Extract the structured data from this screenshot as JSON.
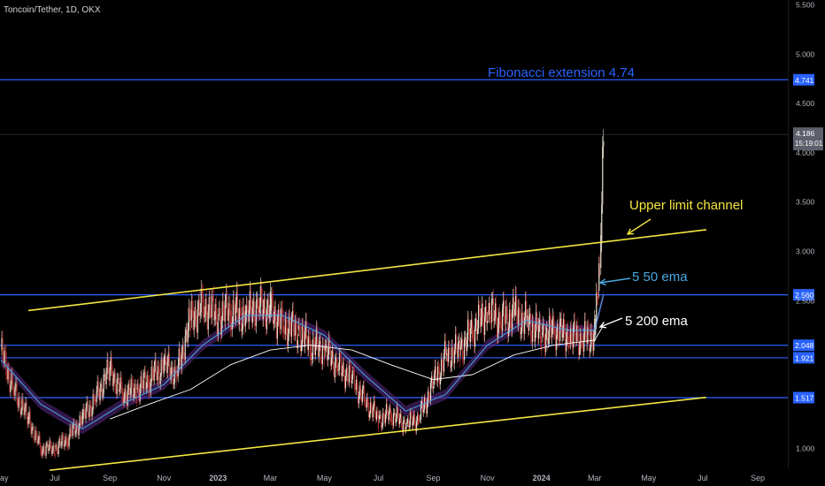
{
  "header": {
    "symbol_label": "Toncoin/Tether, 1D, OKX"
  },
  "colors": {
    "background": "#000000",
    "hline": "#2962ff",
    "channel": "#f5e642",
    "ema50": "#4aa8e0",
    "ema200": "#ffffff",
    "candle_up": "#e8e0d0",
    "candle_down": "#b03030",
    "price_badge": "#5d606b"
  },
  "chart_data": {
    "type": "line",
    "title": "",
    "xlabel": "",
    "ylabel": "",
    "ylim": [
      0.8,
      5.55
    ],
    "y_ticks": [
      "1.000",
      "2.500",
      "3.000",
      "3.500",
      "4.000",
      "4.500",
      "5.000",
      "5.500"
    ],
    "y_tick_values": [
      1.0,
      2.5,
      3.0,
      3.5,
      4.0,
      4.5,
      5.0,
      5.5
    ],
    "x_ticks": [
      "May",
      "Jul",
      "Sep",
      "Nov",
      "2023",
      "Mar",
      "May",
      "Jul",
      "Sep",
      "Nov",
      "2024",
      "Mar",
      "May",
      "Jul",
      "Sep"
    ],
    "x_tick_dates": [
      "2022-05-01",
      "2022-07-01",
      "2022-09-01",
      "2022-11-01",
      "2023-01-01",
      "2023-03-01",
      "2023-05-01",
      "2023-07-01",
      "2023-09-01",
      "2023-11-01",
      "2024-01-01",
      "2024-03-01",
      "2024-05-01",
      "2024-07-01",
      "2024-09-01"
    ],
    "xlim": [
      "2022-04-30",
      "2024-10-05"
    ],
    "horizontal_levels": [
      {
        "value": 4.741,
        "label": "4.741"
      },
      {
        "value": 2.56,
        "label": "2.560"
      },
      {
        "value": 2.048,
        "label": "2.048"
      },
      {
        "value": 1.921,
        "label": "1.921"
      },
      {
        "value": 1.517,
        "label": "1.517"
      }
    ],
    "current_price": {
      "value": 4.186,
      "label": "4.186",
      "countdown": "15:19:01"
    },
    "channel_upper": {
      "start": [
        "2022-06-01",
        2.4
      ],
      "end": [
        "2024-07-05",
        3.22
      ]
    },
    "channel_lower": {
      "start": [
        "2022-06-25",
        0.78
      ],
      "end": [
        "2024-07-05",
        1.52
      ]
    },
    "series": [
      {
        "name": "Price",
        "x": [
          "2022-05-01",
          "2022-05-15",
          "2022-06-01",
          "2022-06-15",
          "2022-07-01",
          "2022-07-15",
          "2022-08-01",
          "2022-08-15",
          "2022-09-01",
          "2022-09-15",
          "2022-10-01",
          "2022-10-15",
          "2022-11-01",
          "2022-11-15",
          "2022-12-01",
          "2022-12-15",
          "2023-01-01",
          "2023-01-15",
          "2023-02-01",
          "2023-02-15",
          "2023-03-01",
          "2023-03-15",
          "2023-04-01",
          "2023-04-15",
          "2023-05-01",
          "2023-05-15",
          "2023-06-01",
          "2023-06-15",
          "2023-07-01",
          "2023-07-15",
          "2023-08-01",
          "2023-08-15",
          "2023-09-01",
          "2023-09-15",
          "2023-10-01",
          "2023-10-15",
          "2023-11-01",
          "2023-11-15",
          "2023-12-01",
          "2023-12-15",
          "2024-01-01",
          "2024-01-15",
          "2024-02-01",
          "2024-02-15",
          "2024-03-01",
          "2024-03-05",
          "2024-03-08",
          "2024-03-11"
        ],
        "values": [
          2.0,
          1.6,
          1.3,
          1.0,
          1.0,
          1.1,
          1.3,
          1.5,
          1.8,
          1.55,
          1.6,
          1.7,
          1.85,
          1.75,
          2.3,
          2.45,
          2.35,
          2.4,
          2.35,
          2.45,
          2.4,
          2.25,
          2.2,
          2.05,
          2.0,
          1.85,
          1.7,
          1.5,
          1.3,
          1.35,
          1.25,
          1.3,
          1.65,
          1.95,
          2.0,
          2.2,
          2.4,
          2.3,
          2.35,
          2.3,
          2.15,
          2.2,
          2.15,
          2.1,
          2.15,
          2.6,
          3.1,
          4.186
        ]
      },
      {
        "name": "50 ema",
        "x": [
          "2022-05-01",
          "2022-06-15",
          "2022-08-01",
          "2022-09-15",
          "2022-11-01",
          "2022-12-15",
          "2023-02-01",
          "2023-03-15",
          "2023-05-01",
          "2023-06-15",
          "2023-08-01",
          "2023-09-15",
          "2023-11-01",
          "2023-12-15",
          "2024-02-01",
          "2024-03-01",
          "2024-03-11"
        ],
        "values": [
          1.9,
          1.45,
          1.2,
          1.45,
          1.65,
          2.05,
          2.35,
          2.35,
          2.15,
          1.75,
          1.38,
          1.55,
          2.05,
          2.3,
          2.2,
          2.2,
          2.56
        ]
      },
      {
        "name": "200 ema",
        "x": [
          "2022-09-01",
          "2022-10-15",
          "2022-12-01",
          "2023-01-15",
          "2023-03-01",
          "2023-04-15",
          "2023-06-01",
          "2023-07-15",
          "2023-09-01",
          "2023-10-15",
          "2023-12-01",
          "2024-01-15",
          "2024-03-01",
          "2024-03-11"
        ],
        "values": [
          1.3,
          1.45,
          1.6,
          1.85,
          2.0,
          2.05,
          2.0,
          1.85,
          1.7,
          1.75,
          1.95,
          2.05,
          2.1,
          2.25
        ]
      }
    ],
    "annotations": [
      {
        "text": "Fibonacci extension 4.74",
        "color": "#2962ff"
      },
      {
        "text": "Upper limit channel",
        "color": "#f5e642"
      },
      {
        "text": "5 50 ema",
        "color": "#4aa8e0"
      },
      {
        "text": "5 200 ema",
        "color": "#ffffff"
      }
    ]
  }
}
